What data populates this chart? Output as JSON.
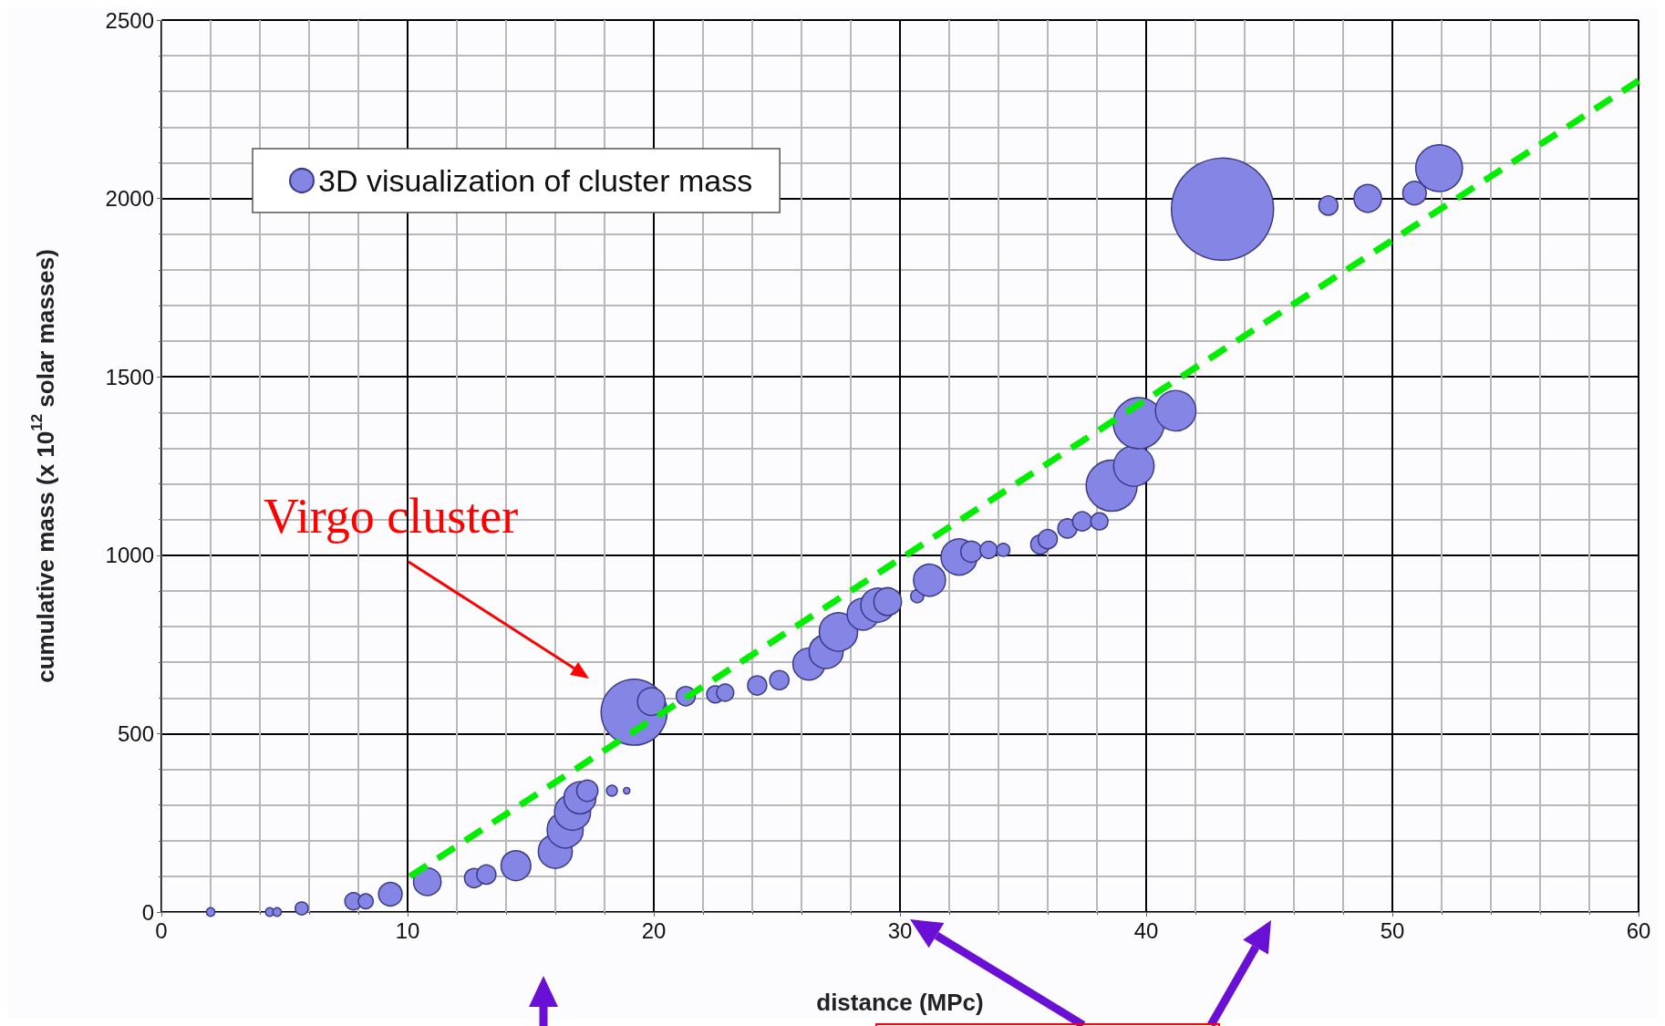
{
  "chart_data": {
    "type": "bubble",
    "xlabel": "distance (MPc)",
    "ylabel": "cumulative mass (x 10$^{12}$ solar masses)",
    "xlim": [
      0,
      60
    ],
    "xticks": [
      0,
      10,
      20,
      30,
      40,
      50,
      60
    ],
    "ylim": [
      0,
      2500
    ],
    "yticks": [
      0,
      500,
      1000,
      1500,
      2000,
      2500
    ],
    "grid": true,
    "legend": "top left",
    "annotations": [
      "Virgo cluster"
    ],
    "series": [
      {
        "name": "3D visualization of cluster mass",
        "color": "#8585e6",
        "marker": "circle",
        "x": [
          2.0,
          4.4,
          4.7,
          5.7,
          7.8,
          8.3,
          9.3,
          10.8,
          12.7,
          13.2,
          14.4,
          16.0,
          16.4,
          16.7,
          17.0,
          17.3,
          18.3,
          18.9,
          19.2,
          19.9,
          21.3,
          22.5,
          22.9,
          24.2,
          25.1,
          26.3,
          27.0,
          27.5,
          28.5,
          29.1,
          29.5,
          30.7,
          31.2,
          32.4,
          32.9,
          33.6,
          34.2,
          35.7,
          36.0,
          36.8,
          37.4,
          38.1,
          38.6,
          39.5,
          39.7,
          41.2,
          43.1,
          47.4,
          49.0,
          50.9,
          51.9
        ],
        "values": [
          0,
          0,
          0,
          10,
          30,
          30,
          50,
          85,
          95,
          105,
          130,
          170,
          230,
          280,
          320,
          340,
          340,
          340,
          560,
          590,
          605,
          610,
          615,
          635,
          650,
          695,
          730,
          785,
          835,
          860,
          870,
          885,
          930,
          995,
          1010,
          1015,
          1015,
          1030,
          1045,
          1075,
          1095,
          1095,
          1195,
          1250,
          1370,
          1405,
          1970,
          1980,
          2000,
          2015,
          2085
        ],
        "sizes": [
          0.007,
          0.007,
          0.007,
          0.016,
          0.028,
          0.021,
          0.053,
          0.073,
          0.035,
          0.035,
          0.085,
          0.111,
          0.125,
          0.125,
          0.098,
          0.043,
          0.011,
          0.004,
          0.417,
          0.073,
          0.035,
          0.028,
          0.028,
          0.035,
          0.035,
          0.098,
          0.111,
          0.141,
          0.098,
          0.111,
          0.073,
          0.016,
          0.098,
          0.125,
          0.043,
          0.028,
          0.016,
          0.035,
          0.035,
          0.035,
          0.035,
          0.028,
          0.25,
          0.157,
          0.25,
          0.157,
          1,
          0.035,
          0.073,
          0.053,
          0.21
        ]
      },
      {
        "type": "line",
        "color": "#00ee00",
        "line_style": "dashed",
        "marker": "none",
        "x": [
          10.1,
          60
        ],
        "values": [
          100,
          2330
        ]
      }
    ]
  }
}
